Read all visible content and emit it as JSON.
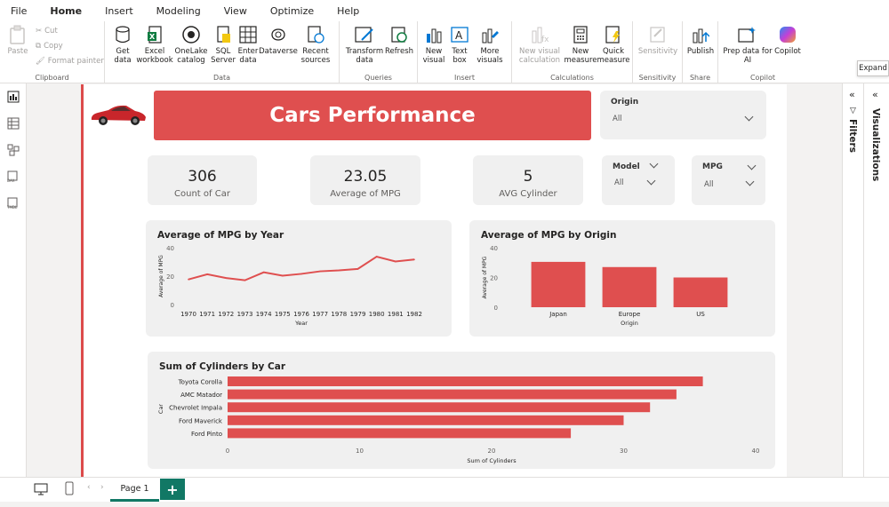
{
  "menu": [
    "File",
    "Home",
    "Insert",
    "Modeling",
    "View",
    "Optimize",
    "Help"
  ],
  "ribbon": {
    "clipboard": {
      "label": "Clipboard",
      "paste": "Paste",
      "cut": "Cut",
      "copy": "Copy",
      "format_painter": "Format painter"
    },
    "data": {
      "label": "Data",
      "get_data": [
        "Get",
        "data"
      ],
      "excel": [
        "Excel",
        "workbook"
      ],
      "onelake": [
        "OneLake",
        "catalog"
      ],
      "sql": [
        "SQL",
        "Server"
      ],
      "enter": [
        "Enter",
        "data"
      ],
      "dataverse": "Dataverse",
      "recent": [
        "Recent",
        "sources"
      ]
    },
    "queries": {
      "label": "Queries",
      "transform": [
        "Transform",
        "data"
      ],
      "refresh": "Refresh"
    },
    "insert": {
      "label": "Insert",
      "new_visual": [
        "New",
        "visual"
      ],
      "text_box": [
        "Text",
        "box"
      ],
      "more_visuals": [
        "More",
        "visuals"
      ]
    },
    "calculations": {
      "label": "Calculations",
      "new_visual_calc": [
        "New visual",
        "calculation"
      ],
      "new_measure": [
        "New",
        "measure"
      ],
      "quick_measure": [
        "Quick",
        "measure"
      ]
    },
    "sensitivity": {
      "label": "Sensitivity",
      "btn": "Sensitivity"
    },
    "share": {
      "label": "Share",
      "publish": "Publish"
    },
    "copilot": {
      "label": "Copilot",
      "prep": [
        "Prep data for",
        "AI"
      ],
      "copilot": "Copilot"
    }
  },
  "report": {
    "title": "Cars Performance",
    "slicers": {
      "origin": {
        "label": "Origin",
        "value": "All"
      },
      "model": {
        "label": "Model",
        "value": "All"
      },
      "mpg": {
        "label": "MPG",
        "value": "All"
      }
    },
    "kpis": [
      {
        "value": "306",
        "label": "Count of Car"
      },
      {
        "value": "23.05",
        "label": "Average of MPG"
      },
      {
        "value": "5",
        "label": "AVG Cylinder"
      }
    ]
  },
  "chart_data": [
    {
      "type": "line",
      "title": "Average of MPG by Year",
      "xlabel": "Year",
      "ylabel": "Average of MPG",
      "x": [
        "1970",
        "1971",
        "1972",
        "1973",
        "1974",
        "1975",
        "1976",
        "1977",
        "1978",
        "1979",
        "1980",
        "1981",
        "1982"
      ],
      "values": [
        17.7,
        21.3,
        18.7,
        17.1,
        22.7,
        20.3,
        21.6,
        23.4,
        24.1,
        25.1,
        33.7,
        30.3,
        31.7
      ],
      "ylim": [
        0,
        40
      ],
      "yticks": [
        "40",
        "20",
        "0"
      ],
      "color": "#df4f4f"
    },
    {
      "type": "bar",
      "title": "Average of MPG by Origin",
      "xlabel": "Origin",
      "ylabel": "Average of MPG",
      "categories": [
        "Japan",
        "Europe",
        "US"
      ],
      "values": [
        30.5,
        27.0,
        20.0
      ],
      "ylim": [
        0,
        40
      ],
      "yticks": [
        "40",
        "20",
        "0"
      ],
      "color": "#df4f4f"
    },
    {
      "type": "bar",
      "orientation": "horizontal",
      "title": "Sum of Cylinders by Car",
      "xlabel": "Sum of Cylinders",
      "ylabel": "Car",
      "categories": [
        "Toyota Corolla",
        "AMC Matador",
        "Chevrolet Impala",
        "Ford Maverick",
        "Ford Pinto"
      ],
      "values": [
        36,
        34,
        32,
        30,
        26
      ],
      "xlim": [
        0,
        40
      ],
      "xticks": [
        "0",
        "10",
        "20",
        "30",
        "40"
      ],
      "color": "#df4f4f"
    }
  ],
  "panes": {
    "filters": "Filters",
    "visualizations": "Visualizations",
    "expand_tip": "Expand"
  },
  "footer": {
    "page_tab": "Page 1",
    "add": "+"
  },
  "colors": {
    "accent": "#117865",
    "report_red": "#df4f4f"
  }
}
